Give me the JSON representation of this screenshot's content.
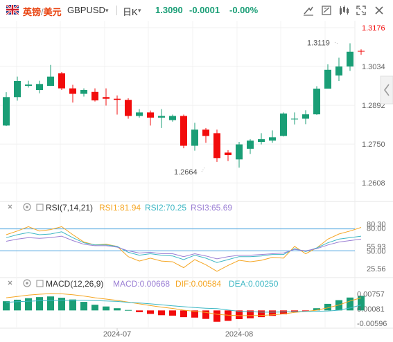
{
  "header": {
    "pair_name_left": "英镑",
    "pair_separator": "/",
    "pair_name_right": "美元",
    "pair_code": "GBPUSD",
    "period": "日K",
    "last_price": "1.3090",
    "change": "-0.0001",
    "change_pct": "-0.00%",
    "up_color": "#1a9e76",
    "down_color": "#f20c0c",
    "tool_icons": [
      "draw-line-icon",
      "indicator-icon",
      "drawing-tools-icon",
      "fullscreen-icon",
      "close-icon"
    ],
    "collapse_icon": "chevron-left-icon"
  },
  "chart_data": [
    {
      "type": "candlestick",
      "name": "price",
      "y_ticks": [
        1.3176,
        1.3034,
        1.2892,
        1.275,
        1.2608
      ],
      "y_tick_labels": [
        "1.3176",
        "1.3034",
        "1.2892",
        "1.2750",
        "1.2608"
      ],
      "ylim": [
        1.2563,
        1.3176
      ],
      "grid": true,
      "annotations": [
        {
          "text": "1.3119",
          "value": 1.3119,
          "candle": 30
        },
        {
          "text": "1.2664",
          "value": 1.2664,
          "candle": 18
        }
      ],
      "x_labels": [
        {
          "text": "2024-07",
          "candle": 10
        },
        {
          "text": "2024-08",
          "candle": 21
        }
      ],
      "candles": [
        {
          "o": 1.2818,
          "h": 1.294,
          "l": 1.2816,
          "c": 1.2922
        },
        {
          "o": 1.2922,
          "h": 1.2997,
          "l": 1.2909,
          "c": 1.2981
        },
        {
          "o": 1.2963,
          "h": 1.2982,
          "l": 1.2957,
          "c": 1.2968
        },
        {
          "o": 1.2948,
          "h": 1.2982,
          "l": 1.2936,
          "c": 1.297
        },
        {
          "o": 1.2963,
          "h": 1.304,
          "l": 1.2963,
          "c": 1.2997
        },
        {
          "o": 1.3009,
          "h": 1.3014,
          "l": 1.2948,
          "c": 1.2954
        },
        {
          "o": 1.2954,
          "h": 1.2967,
          "l": 1.2902,
          "c": 1.2934
        },
        {
          "o": 1.2934,
          "h": 1.2954,
          "l": 1.2924,
          "c": 1.2948
        },
        {
          "o": 1.2941,
          "h": 1.2954,
          "l": 1.2906,
          "c": 1.291
        },
        {
          "o": 1.2922,
          "h": 1.2954,
          "l": 1.2891,
          "c": 1.2916
        },
        {
          "o": 1.2916,
          "h": 1.2928,
          "l": 1.2858,
          "c": 1.2912
        },
        {
          "o": 1.2912,
          "h": 1.2918,
          "l": 1.2843,
          "c": 1.2853
        },
        {
          "o": 1.2853,
          "h": 1.2878,
          "l": 1.2847,
          "c": 1.2866
        },
        {
          "o": 1.2866,
          "h": 1.2873,
          "l": 1.2818,
          "c": 1.2847
        },
        {
          "o": 1.2847,
          "h": 1.2878,
          "l": 1.2809,
          "c": 1.2853
        },
        {
          "o": 1.2838,
          "h": 1.2858,
          "l": 1.2832,
          "c": 1.2853
        },
        {
          "o": 1.2853,
          "h": 1.2858,
          "l": 1.2735,
          "c": 1.2744
        },
        {
          "o": 1.2744,
          "h": 1.2828,
          "l": 1.2726,
          "c": 1.2803
        },
        {
          "o": 1.2803,
          "h": 1.2809,
          "l": 1.2755,
          "c": 1.278
        },
        {
          "o": 1.279,
          "h": 1.2803,
          "l": 1.2685,
          "c": 1.2699
        },
        {
          "o": 1.2719,
          "h": 1.2728,
          "l": 1.2688,
          "c": 1.271
        },
        {
          "o": 1.2694,
          "h": 1.2758,
          "l": 1.2664,
          "c": 1.2749
        },
        {
          "o": 1.2733,
          "h": 1.2768,
          "l": 1.2714,
          "c": 1.2763
        },
        {
          "o": 1.2758,
          "h": 1.279,
          "l": 1.2749,
          "c": 1.2768
        },
        {
          "o": 1.2763,
          "h": 1.28,
          "l": 1.2755,
          "c": 1.2775
        },
        {
          "o": 1.278,
          "h": 1.2866,
          "l": 1.2778,
          "c": 1.2862
        },
        {
          "o": 1.2843,
          "h": 1.2866,
          "l": 1.2822,
          "c": 1.2843
        },
        {
          "o": 1.2843,
          "h": 1.2874,
          "l": 1.2823,
          "c": 1.2859
        },
        {
          "o": 1.2859,
          "h": 1.2962,
          "l": 1.2857,
          "c": 1.2953
        },
        {
          "o": 1.2953,
          "h": 1.3042,
          "l": 1.2953,
          "c": 1.3022
        },
        {
          "o": 1.3001,
          "h": 1.3066,
          "l": 1.2981,
          "c": 1.3034
        },
        {
          "o": 1.3034,
          "h": 1.3119,
          "l": 1.3018,
          "c": 1.3088
        },
        {
          "o": 1.3091,
          "h": 1.3097,
          "l": 1.3077,
          "c": 1.309
        }
      ]
    },
    {
      "type": "line",
      "name": "RSI",
      "label": "RSI(7,14,21)",
      "legend": [
        {
          "text": "RSI1:81.94",
          "color": "#f5a623"
        },
        {
          "text": "RSI2:70.25",
          "color": "#3db7c4"
        },
        {
          "text": "RSI3:65.69",
          "color": "#9b7fd4"
        }
      ],
      "y_ticks": [
        80.3,
        80.0,
        55.93,
        50.0,
        25.56
      ],
      "y_tick_labels": [
        "80.30",
        "80.00",
        "55.93",
        "50.00",
        "25.56"
      ],
      "ylim": [
        20,
        90
      ],
      "reference_lines": [
        {
          "value": 80,
          "color": "#4aa3df"
        },
        {
          "value": 50,
          "color": "#4aa3df"
        }
      ],
      "series": [
        {
          "name": "RSI1",
          "color": "#f5a623",
          "values": [
            72,
            77,
            83,
            77,
            79,
            83,
            72,
            62,
            58,
            59,
            56,
            42,
            36,
            40,
            36,
            35,
            27,
            38,
            31,
            22,
            30,
            37,
            35,
            37,
            41,
            40,
            56,
            46,
            54,
            66,
            73,
            77,
            82
          ]
        },
        {
          "name": "RSI2",
          "color": "#3db7c4",
          "values": [
            68,
            72,
            75,
            72,
            73,
            76,
            68,
            61,
            58,
            58,
            56,
            48,
            44,
            46,
            44,
            43,
            38,
            44,
            40,
            34,
            38,
            42,
            42,
            43,
            45,
            45,
            53,
            49,
            54,
            61,
            66,
            68,
            70
          ]
        },
        {
          "name": "RSI3",
          "color": "#9b7fd4",
          "values": [
            63,
            66,
            68,
            67,
            68,
            70,
            64,
            59,
            57,
            57,
            55,
            50,
            47,
            48,
            46,
            46,
            42,
            46,
            43,
            39,
            42,
            44,
            44,
            45,
            46,
            47,
            52,
            50,
            53,
            58,
            62,
            64,
            66
          ]
        }
      ]
    },
    {
      "type": "bar",
      "name": "MACD",
      "label": "MACD(12,26,9)",
      "legend": [
        {
          "text": "MACD:0.00668",
          "color": "#9b7fd4"
        },
        {
          "text": "DIF:0.00584",
          "color": "#f5a623"
        },
        {
          "text": "DEA:0.00250",
          "color": "#3db7c4"
        }
      ],
      "y_ticks": [
        0.00757,
        0.00081,
        -0.00596
      ],
      "y_tick_labels": [
        "0.00757",
        "0.00081",
        "-0.00596"
      ],
      "ylim": [
        -0.0075,
        0.009
      ],
      "histogram": [
        0.0042,
        0.0049,
        0.0056,
        0.0061,
        0.0064,
        0.0058,
        0.005,
        0.0039,
        0.0026,
        0.0018,
        0.001,
        0.0002,
        -0.0008,
        -0.0016,
        -0.0022,
        -0.0024,
        -0.0031,
        -0.0033,
        -0.0039,
        -0.0052,
        -0.0048,
        -0.004,
        -0.0036,
        -0.0031,
        -0.0025,
        -0.0018,
        -0.0006,
        -0.0001,
        0.001,
        0.003,
        0.0047,
        0.0059,
        0.0067
      ],
      "series": [
        {
          "name": "DIF",
          "color": "#f5a623",
          "values": [
            0.0058,
            0.0064,
            0.007,
            0.0074,
            0.0077,
            0.0076,
            0.0072,
            0.0066,
            0.0058,
            0.0052,
            0.0046,
            0.0038,
            0.003,
            0.0022,
            0.0015,
            0.0009,
            0.0001,
            -0.0004,
            -0.0009,
            -0.0018,
            -0.0022,
            -0.0024,
            -0.0024,
            -0.0023,
            -0.002,
            -0.0016,
            -0.0009,
            -0.0005,
            0.0001,
            0.0012,
            0.0025,
            0.0043,
            0.0058
          ]
        },
        {
          "name": "DEA",
          "color": "#3db7c4",
          "values": [
            0.0037,
            0.004,
            0.0042,
            0.0044,
            0.0045,
            0.0047,
            0.0047,
            0.0047,
            0.0045,
            0.0043,
            0.0041,
            0.0037,
            0.0034,
            0.003,
            0.0026,
            0.0021,
            0.0017,
            0.0013,
            0.001,
            0.0008,
            0.0002,
            -0.0004,
            -0.0006,
            -0.0008,
            -0.0008,
            -0.0007,
            -0.0006,
            -0.0005,
            -0.0004,
            -0.0003,
            0.0001,
            0.0011,
            0.0025
          ]
        }
      ]
    }
  ]
}
